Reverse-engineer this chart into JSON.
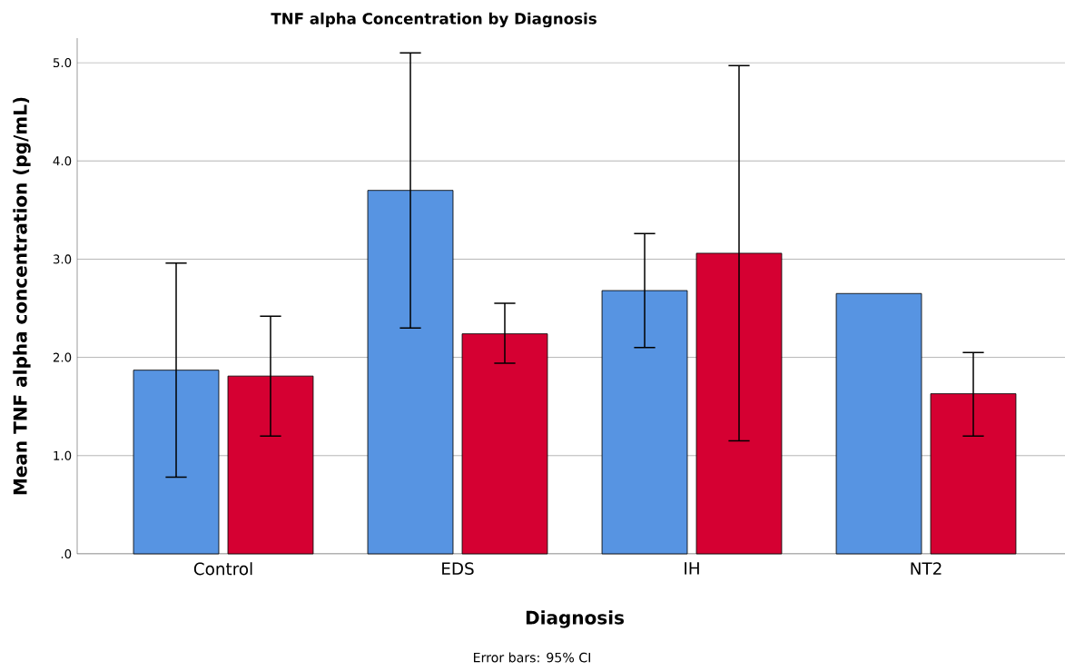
{
  "chart_data": {
    "type": "bar",
    "title": "TNF alpha Concentration by Diagnosis",
    "xlabel": "Diagnosis",
    "ylabel": "Mean TNF alpha concentration (pg/mL)",
    "annotations": [
      "Error bars: 95% CI"
    ],
    "categories": [
      "Control",
      "EDS",
      "IH",
      "NT2"
    ],
    "series": [
      {
        "color": "#5794e2",
        "values": [
          1.87,
          3.7,
          2.68,
          2.65
        ],
        "errors": [
          [
            0.78,
            2.96
          ],
          [
            2.3,
            5.1
          ],
          [
            2.1,
            3.26
          ],
          null
        ]
      },
      {
        "color": "#d50032",
        "values": [
          1.81,
          2.24,
          3.06,
          1.63
        ],
        "errors": [
          [
            1.2,
            2.42
          ],
          [
            1.94,
            2.55
          ],
          [
            1.15,
            4.97
          ],
          [
            1.2,
            2.05
          ]
        ]
      }
    ],
    "ylim": [
      0,
      5.25
    ],
    "yticks": [
      {
        "value": 0,
        "label": ".0"
      },
      {
        "value": 1,
        "label": "1.0"
      },
      {
        "value": 2,
        "label": "2.0"
      },
      {
        "value": 3,
        "label": "3.0"
      },
      {
        "value": 4,
        "label": "4.0"
      },
      {
        "value": 5,
        "label": "5.0"
      }
    ],
    "grid": "y"
  }
}
